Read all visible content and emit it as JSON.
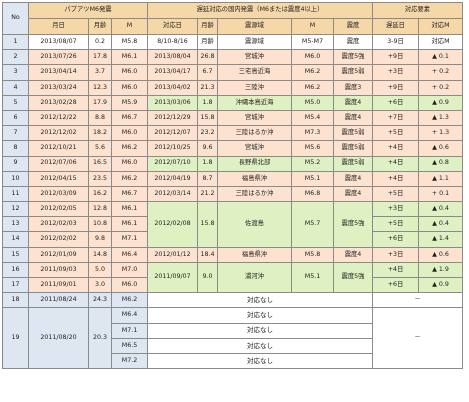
{
  "header": {
    "no": "No",
    "group_papua": "パプアツM6発震",
    "group_domestic": "遅延対応の国内発震（M6または震度4以上）",
    "group_response": "対応要素",
    "col_date": "月日",
    "col_age": "月齢",
    "col_m": "M",
    "col_resp_date": "対応日",
    "col_resp_age": "月齢",
    "col_epicenter": "震源域",
    "col_dm": "M",
    "col_intensity": "震度",
    "col_delay": "遅延日",
    "col_resp_m": "対応M"
  },
  "row1": {
    "no": "1",
    "date": "2013/08/07",
    "age": "0.2",
    "m": "M5.8",
    "resp_date": "8/10-8/16",
    "resp_age": "月齢",
    "epicenter": "震源域",
    "dm": "M5-M7",
    "intensity": "震度",
    "delay": "3-9日",
    "resp_m": "対応M"
  },
  "rows": [
    {
      "no": "2",
      "date": "2013/07/26",
      "age": "17.8",
      "m": "M6.1",
      "resp_date": "2013/08/04",
      "resp_age": "26.8",
      "epicenter": "宮城沖",
      "dm": "M6.0",
      "intensity": "震度5強",
      "delay": "+9日",
      "resp_m": "▲ 0.1"
    },
    {
      "no": "3",
      "date": "2013/04/14",
      "age": "3.7",
      "m": "M6.0",
      "resp_date": "2013/04/17",
      "resp_age": "6.7",
      "epicenter": "三宅島近海",
      "dm": "M6.2",
      "intensity": "震度5弱",
      "delay": "+3日",
      "resp_m": "+ 0.2"
    },
    {
      "no": "4",
      "date": "2013/03/24",
      "age": "12.3",
      "m": "M6.0",
      "resp_date": "2013/04/02",
      "resp_age": "21.3",
      "epicenter": "三陸沖",
      "dm": "M6.2",
      "intensity": "震度3",
      "delay": "+9日",
      "resp_m": "+ 0.2"
    },
    {
      "no": "5",
      "date": "2013/02/28",
      "age": "17.9",
      "m": "M5.9",
      "resp_date": "2013/03/06",
      "resp_age": "1.8",
      "epicenter": "沖縄本島近海",
      "dm": "M5.0",
      "intensity": "震度4",
      "delay": "+6日",
      "resp_m": "▲ 0.9"
    },
    {
      "no": "6",
      "date": "2012/12/22",
      "age": "8.8",
      "m": "M6.7",
      "resp_date": "2012/12/29",
      "resp_age": "15.8",
      "epicenter": "宮城沖",
      "dm": "M5.4",
      "intensity": "震度4",
      "delay": "+7日",
      "resp_m": "▲ 1.3"
    },
    {
      "no": "7",
      "date": "2012/12/02",
      "age": "18.2",
      "m": "M6.0",
      "resp_date": "2012/12/07",
      "resp_age": "23.2",
      "epicenter": "三陸はるか沖",
      "dm": "M7.3",
      "intensity": "震度5弱",
      "delay": "+5日",
      "resp_m": "+ 1.3"
    },
    {
      "no": "8",
      "date": "2012/10/21",
      "age": "5.6",
      "m": "M6.2",
      "resp_date": "2012/10/25",
      "resp_age": "9.6",
      "epicenter": "宮城沖",
      "dm": "M5.6",
      "intensity": "震度5弱",
      "delay": "+4日",
      "resp_m": "▲ 0.6"
    },
    {
      "no": "9",
      "date": "2012/07/06",
      "age": "16.5",
      "m": "M6.0",
      "resp_date": "2012/07/10",
      "resp_age": "1.8",
      "epicenter": "長野県北部",
      "dm": "M5.2",
      "intensity": "震度5弱",
      "delay": "+4日",
      "resp_m": "▲ 0.8"
    },
    {
      "no": "10",
      "date": "2012/04/15",
      "age": "23.5",
      "m": "M6.2",
      "resp_date": "2012/04/19",
      "resp_age": "8.7",
      "epicenter": "福島県沖",
      "dm": "M5.1",
      "intensity": "震度4",
      "delay": "+4日",
      "resp_m": "▲ 1.1"
    },
    {
      "no": "11",
      "date": "2012/03/09",
      "age": "16.2",
      "m": "M6.7",
      "resp_date": "2012/03/14",
      "resp_age": "21.2",
      "epicenter": "三陸はるか沖",
      "dm": "M6.8",
      "intensity": "震度4",
      "delay": "+5日",
      "resp_m": "+ 0.1"
    }
  ],
  "group12": {
    "resp_date": "2012/02/08",
    "resp_age": "15.8",
    "epicenter": "佐渡島",
    "dm": "M5.7",
    "intensity": "震度5強",
    "rows": [
      {
        "no": "12",
        "date": "2012/02/05",
        "age": "12.8",
        "m": "M6.1",
        "delay": "+3日",
        "resp_m": "▲ 0.4"
      },
      {
        "no": "13",
        "date": "2012/02/03",
        "age": "10.8",
        "m": "M6.1",
        "delay": "+5日",
        "resp_m": "▲ 0.4"
      },
      {
        "no": "14",
        "date": "2012/02/02",
        "age": "9.8",
        "m": "M7.1",
        "delay": "+6日",
        "resp_m": "▲ 1.4"
      }
    ]
  },
  "row15": {
    "no": "15",
    "date": "2012/01/09",
    "age": "14.8",
    "m": "M6.4",
    "resp_date": "2012/01/12",
    "resp_age": "18.4",
    "epicenter": "福島県沖",
    "dm": "M5.8",
    "intensity": "震度4",
    "delay": "+3日",
    "resp_m": "▲ 0.6"
  },
  "group16": {
    "resp_date": "2011/09/07",
    "resp_age": "9.0",
    "epicenter": "浦河沖",
    "dm": "M5.1",
    "intensity": "震度5強",
    "rows": [
      {
        "no": "16",
        "date": "2011/09/03",
        "age": "5.0",
        "m": "M7.0",
        "delay": "+4日",
        "resp_m": "▲ 1.9"
      },
      {
        "no": "17",
        "date": "2011/09/01",
        "age": "3.0",
        "m": "M6.0",
        "delay": "+6日",
        "resp_m": "▲ 0.9"
      }
    ]
  },
  "row18": {
    "no": "18",
    "date": "2011/08/24",
    "age": "24.3",
    "m": "M6.2",
    "none": "対応なし",
    "dash": "－"
  },
  "group19": {
    "no": "19",
    "date": "2011/08/20",
    "age": "20.3",
    "dash": "－",
    "rows": [
      {
        "m": "M6.4",
        "none": "対応なし"
      },
      {
        "m": "M7.1",
        "none": "対応なし"
      },
      {
        "m": "M6.5",
        "none": "対応なし"
      },
      {
        "m": "M7.2",
        "none": "対応なし"
      }
    ]
  },
  "colors": {
    "header": "#f6d7a8",
    "orange": "#fde2cf",
    "green": "#dff0c3",
    "blue": "#dde6f1"
  }
}
